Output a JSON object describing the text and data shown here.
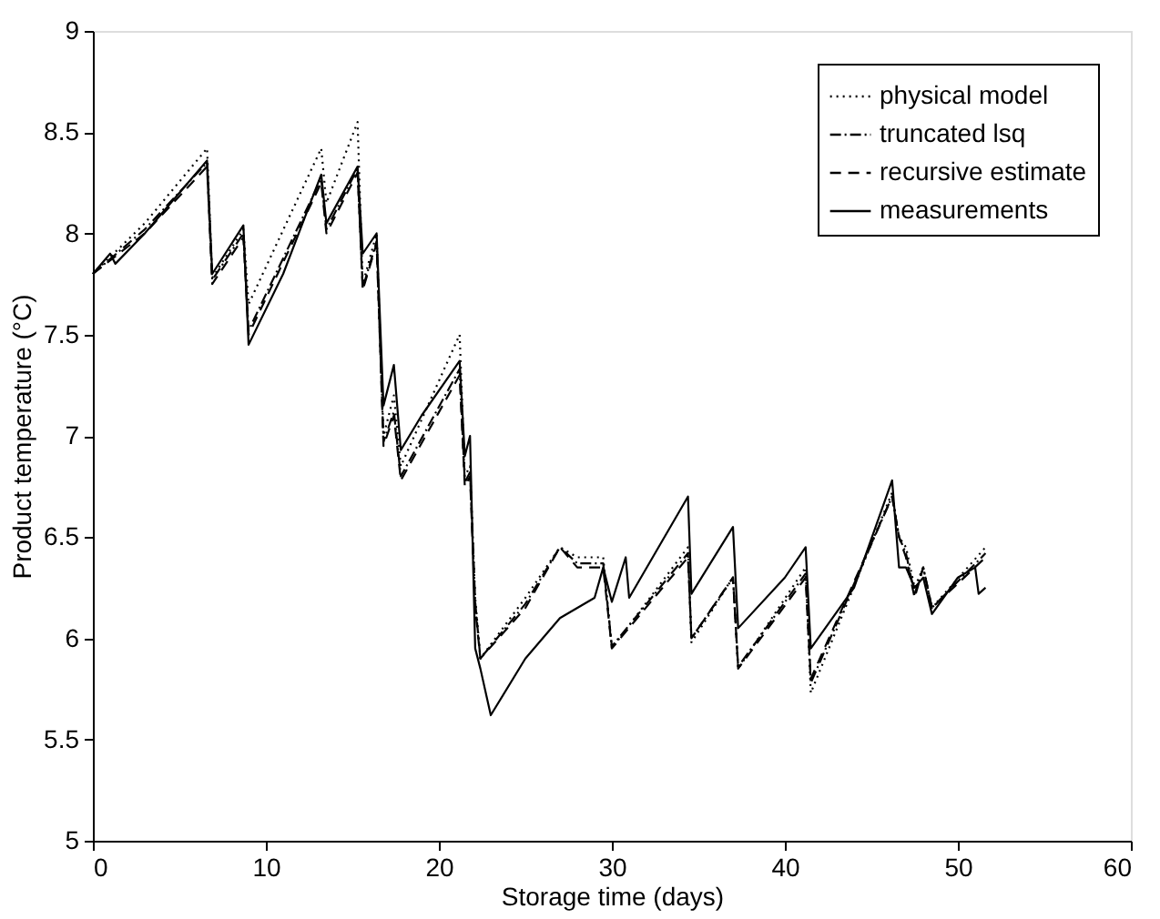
{
  "chart_data": {
    "type": "line",
    "xlabel": "Storage time (days)",
    "ylabel": "Product temperature (°C)",
    "xlim": [
      0,
      60
    ],
    "xticks": [
      0,
      10,
      20,
      30,
      40,
      50,
      60
    ],
    "ylim": [
      5,
      9
    ],
    "yticks": [
      5,
      5.5,
      6,
      6.5,
      7,
      7.5,
      8,
      8.5,
      9
    ],
    "grid": false,
    "legend": "top right",
    "marker": "none",
    "series": [
      {
        "name": "physical model",
        "color": "#000000",
        "line_style": "dotted",
        "x": [
          0,
          3,
          6.6,
          6.9,
          8.7,
          9.0,
          13.2,
          13.5,
          15.3,
          15.6,
          16.4,
          16.8,
          17.4,
          17.8,
          21.2,
          21.5,
          21.8,
          22.1,
          22.4,
          25,
          27,
          28,
          29.5,
          30,
          34.4,
          34.6,
          37,
          37.3,
          41.2,
          41.5,
          46.2,
          46.6,
          47,
          47.5,
          48,
          48.5,
          51.6
        ],
        "values": [
          7.8,
          8.05,
          8.42,
          7.78,
          8.02,
          7.65,
          8.42,
          8.15,
          8.55,
          7.75,
          8.0,
          7.0,
          7.2,
          6.85,
          7.5,
          6.8,
          6.85,
          6.2,
          5.9,
          6.2,
          6.45,
          6.4,
          6.4,
          5.95,
          6.45,
          5.98,
          6.3,
          5.85,
          6.35,
          5.73,
          6.72,
          6.5,
          6.45,
          6.25,
          6.35,
          6.15,
          6.45
        ]
      },
      {
        "name": "truncated lsq",
        "color": "#000000",
        "line_style": "dashdot",
        "x": [
          0,
          3,
          6.6,
          6.9,
          8.7,
          9.0,
          13.2,
          13.5,
          15.3,
          15.6,
          16.4,
          16.8,
          17.4,
          17.8,
          21.2,
          21.5,
          21.8,
          22.1,
          22.4,
          25,
          27,
          28,
          29.5,
          30,
          34.4,
          34.6,
          37,
          37.3,
          41.2,
          41.5,
          46.2,
          46.6,
          47,
          47.5,
          48,
          48.5,
          51.6
        ],
        "values": [
          7.8,
          8.02,
          8.35,
          7.77,
          8.0,
          7.52,
          8.27,
          8.02,
          8.32,
          7.73,
          7.96,
          6.97,
          7.12,
          6.8,
          7.33,
          6.77,
          6.82,
          6.18,
          5.9,
          6.17,
          6.45,
          6.37,
          6.37,
          5.96,
          6.42,
          6.0,
          6.3,
          5.86,
          6.32,
          5.78,
          6.7,
          6.5,
          6.42,
          6.22,
          6.35,
          6.15,
          6.42
        ]
      },
      {
        "name": "recursive estimate",
        "color": "#000000",
        "line_style": "dashed",
        "x": [
          0,
          3,
          6.6,
          6.9,
          8.7,
          9.0,
          13.2,
          13.5,
          15.3,
          15.6,
          16.4,
          16.8,
          17.4,
          17.8,
          21.2,
          21.5,
          21.8,
          22.1,
          22.4,
          25,
          27,
          28,
          29.5,
          30,
          34.4,
          34.6,
          37,
          37.3,
          41.2,
          41.5,
          46.2,
          46.6,
          47,
          47.5,
          48,
          48.5,
          51.6
        ],
        "values": [
          7.8,
          8.0,
          8.33,
          7.75,
          7.98,
          7.5,
          8.25,
          8.0,
          8.3,
          7.72,
          7.95,
          6.95,
          7.1,
          6.78,
          7.3,
          6.75,
          6.8,
          6.15,
          5.9,
          6.15,
          6.45,
          6.35,
          6.35,
          5.95,
          6.4,
          6.0,
          6.3,
          5.85,
          6.3,
          5.8,
          6.7,
          6.5,
          6.4,
          6.2,
          6.35,
          6.15,
          6.4
        ]
      },
      {
        "name": "measurements",
        "color": "#000000",
        "line_style": "solid",
        "x": [
          0,
          1,
          1.3,
          3,
          5,
          6.6,
          6.9,
          8.7,
          9.0,
          11,
          13.2,
          13.5,
          15.3,
          15.6,
          16.4,
          16.8,
          17.4,
          17.8,
          19,
          21.2,
          21.5,
          21.8,
          22.1,
          22.4,
          23,
          25,
          27,
          29,
          29.5,
          30,
          30.8,
          31,
          34.4,
          34.6,
          37,
          37.3,
          40,
          41.2,
          41.5,
          44,
          46.2,
          46.6,
          47,
          47.5,
          48,
          48.5,
          50,
          51,
          51.2,
          51.6
        ],
        "values": [
          7.8,
          7.9,
          7.85,
          8.0,
          8.2,
          8.36,
          7.8,
          8.04,
          7.45,
          7.8,
          8.29,
          8.05,
          8.33,
          7.9,
          8.0,
          7.15,
          7.35,
          6.93,
          7.1,
          7.37,
          6.9,
          7.0,
          5.95,
          5.85,
          5.62,
          5.9,
          6.1,
          6.2,
          6.35,
          6.18,
          6.4,
          6.2,
          6.7,
          6.22,
          6.55,
          6.05,
          6.3,
          6.45,
          5.95,
          6.25,
          6.78,
          6.35,
          6.35,
          6.25,
          6.3,
          6.12,
          6.3,
          6.35,
          6.22,
          6.25
        ]
      }
    ]
  }
}
